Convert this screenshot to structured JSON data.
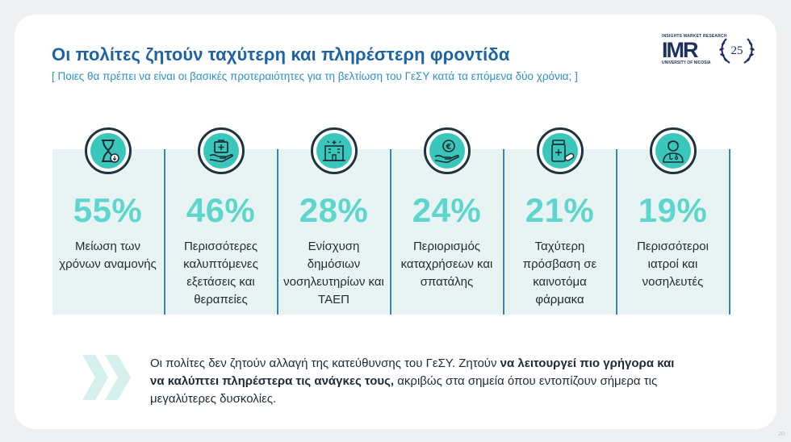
{
  "header": {
    "title": "Οι πολίτες ζητούν ταχύτερη και πληρέστερη φροντίδα",
    "subtitle": "[ Ποιες θα πρέπει να είναι οι βασικές προτεραιότητες για τη βελτίωση του ΓεΣΥ κατά τα επόμενα δύο χρόνια; ]"
  },
  "logo": {
    "top_text": "INSIGHTS MARKET RESEARCH",
    "name": "IMR",
    "bottom_text": "UNIVERSITY OF NICOSIA",
    "anniversary": "25"
  },
  "colors": {
    "accent": "#5ed6cd",
    "title": "#1d63a6",
    "panel_bg": "#e7f4f3",
    "divider": "#2f86c6"
  },
  "priorities": [
    {
      "icon": "hourglass-icon",
      "percent": "55%",
      "label": "Μείωση των χρόνων αναμονής"
    },
    {
      "icon": "medical-kit-hand-icon",
      "percent": "46%",
      "label": "Περισσότερες καλυπτόμενες εξετάσεις και θεραπείες"
    },
    {
      "icon": "hospital-building-icon",
      "percent": "28%",
      "label": "Ενίσχυση δημόσιων νοσηλευτηρίων και ΤΑΕΠ"
    },
    {
      "icon": "euro-hand-icon",
      "percent": "24%",
      "label": "Περιορισμός καταχρήσεων και σπατάλης"
    },
    {
      "icon": "medicine-bottle-icon",
      "percent": "21%",
      "label": "Ταχύτερη πρόσβαση σε καινοτόμα φάρμακα"
    },
    {
      "icon": "doctor-icon",
      "percent": "19%",
      "label": "Περισσότεροι ιατροί και νοσηλευτές"
    }
  ],
  "note": {
    "part1": "Οι πολίτες δεν ζητούν αλλαγή της κατεύθυνσης του ΓεΣΥ. Ζητούν ",
    "bold": "να λειτουργεί πιο γρήγορα και να καλύπτει πληρέστερα τις ανάγκες τους,",
    "part2": " ακριβώς στα σημεία όπου εντοπίζουν σήμερα τις μεγαλύτερες δυσκολίες."
  },
  "page_number": "20"
}
